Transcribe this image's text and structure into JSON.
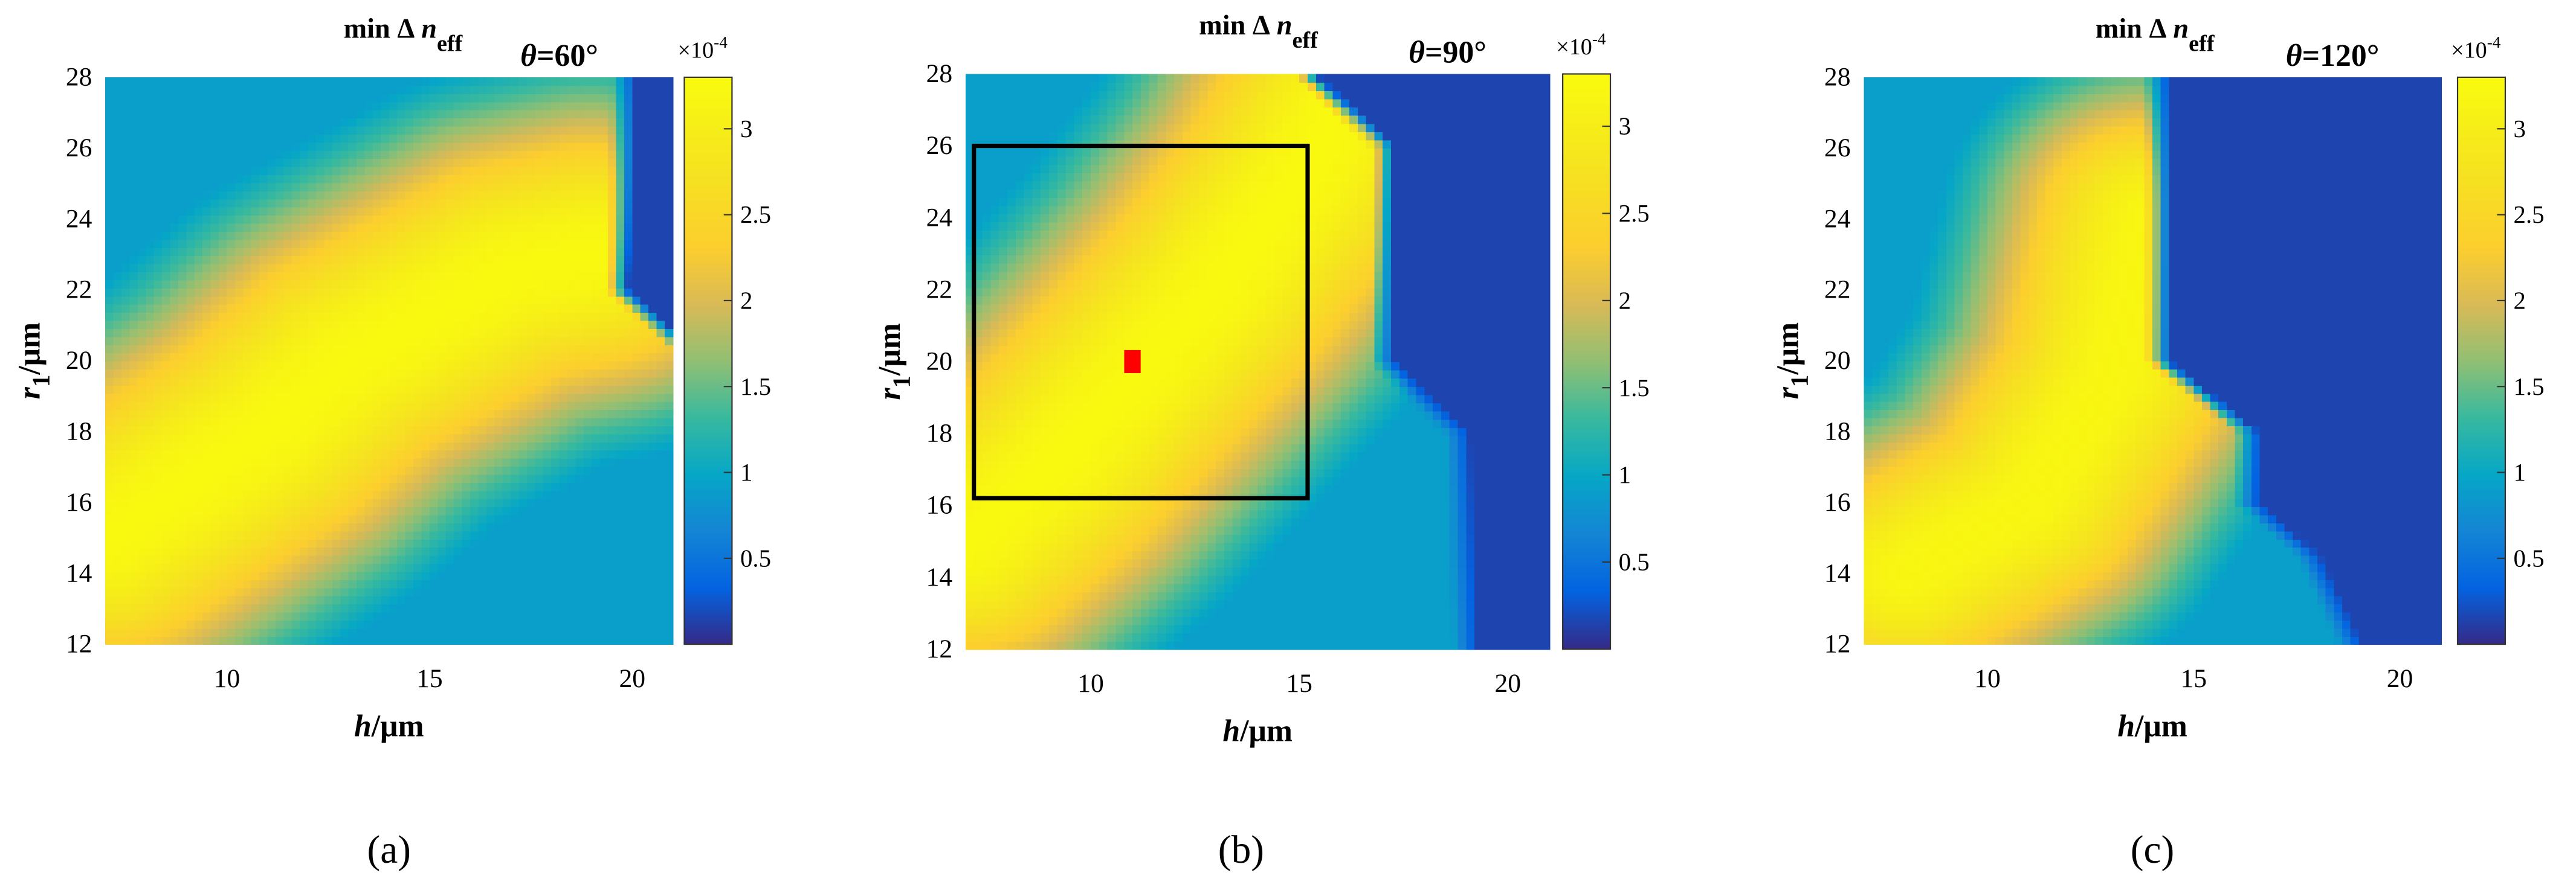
{
  "chart_data": [
    {
      "type": "heatmap",
      "panel_label": "(a)",
      "title": "min Δn_eff",
      "title_parts": {
        "prefix": "min Δ",
        "var": "n",
        "sub": "eff"
      },
      "theta_label": {
        "var": "θ",
        "text": "=60°"
      },
      "xlabel": {
        "var": "h",
        "unit": "/μm"
      },
      "ylabel": {
        "var": "r",
        "sub": "1",
        "unit": "/μm"
      },
      "xlim": [
        7,
        21
      ],
      "ylim": [
        12,
        28
      ],
      "xticks": [
        10,
        15,
        20
      ],
      "yticks": [
        12,
        14,
        16,
        18,
        20,
        22,
        24,
        26,
        28
      ],
      "colorbar": {
        "min": 0,
        "max": 3.3,
        "ticks": [
          0.5,
          1,
          1.5,
          2,
          2.5,
          3
        ],
        "exponent": "×10",
        "exponent_power": "-4"
      },
      "ridge": [
        [
          7,
          15
        ],
        [
          11,
          18
        ],
        [
          13,
          20
        ],
        [
          17,
          22.5
        ],
        [
          19,
          23
        ]
      ],
      "ridge_peak": 3.25,
      "ridge_width": 5.2,
      "cutoff": [
        [
          19.5,
          28
        ],
        [
          19.3,
          22
        ],
        [
          21,
          20.3
        ]
      ],
      "low_value": 0.15,
      "overlay": null
    },
    {
      "type": "heatmap",
      "panel_label": "(b)",
      "title": "min Δn_eff",
      "title_parts": {
        "prefix": "min Δ",
        "var": "n",
        "sub": "eff"
      },
      "theta_label": {
        "var": "θ",
        "text": "=90°"
      },
      "xlabel": {
        "var": "h",
        "unit": "/μm"
      },
      "ylabel": {
        "var": "r",
        "sub": "1",
        "unit": "/μm"
      },
      "xlim": [
        7,
        21
      ],
      "ylim": [
        12,
        28
      ],
      "xticks": [
        10,
        15,
        20
      ],
      "yticks": [
        12,
        14,
        16,
        18,
        20,
        22,
        24,
        26,
        28
      ],
      "colorbar": {
        "min": 0,
        "max": 3.3,
        "ticks": [
          0.5,
          1,
          1.5,
          2,
          2.5,
          3
        ],
        "exponent": "×10",
        "exponent_power": "-4"
      },
      "ridge": [
        [
          7,
          15
        ],
        [
          9,
          17
        ],
        [
          11,
          19.5
        ],
        [
          13,
          22
        ],
        [
          15,
          25
        ],
        [
          16,
          27
        ]
      ],
      "ridge_peak": 3.25,
      "ridge_width": 5.0,
      "cutoff": [
        [
          14.8,
          28
        ],
        [
          16.7,
          26
        ],
        [
          16.7,
          20
        ],
        [
          18.5,
          18
        ],
        [
          18.7,
          12
        ]
      ],
      "low_value": 0.15,
      "overlay": {
        "box": [
          7.2,
          16.2,
          15.2,
          26
        ],
        "marker": [
          11,
          20
        ]
      }
    },
    {
      "type": "heatmap",
      "panel_label": "(c)",
      "title": "min Δn_eff",
      "title_parts": {
        "prefix": "min Δ",
        "var": "n",
        "sub": "eff"
      },
      "theta_label": {
        "var": "θ",
        "text": "=120°"
      },
      "xlabel": {
        "var": "h",
        "unit": "/μm"
      },
      "ylabel": {
        "var": "r",
        "sub": "1",
        "unit": "/μm"
      },
      "xlim": [
        7,
        21
      ],
      "ylim": [
        12,
        28
      ],
      "xticks": [
        10,
        15,
        20
      ],
      "yticks": [
        12,
        14,
        16,
        18,
        20,
        22,
        24,
        26,
        28
      ],
      "colorbar": {
        "min": 0,
        "max": 3.3,
        "ticks": [
          0.5,
          1,
          1.5,
          2,
          2.5,
          3
        ],
        "exponent": "×10",
        "exponent_power": "-4"
      },
      "ridge": [
        [
          8,
          14
        ],
        [
          11,
          16
        ],
        [
          13,
          19.5
        ],
        [
          14,
          24
        ]
      ],
      "ridge_peak": 3.2,
      "ridge_width": 4.6,
      "cutoff": [
        [
          13.8,
          28
        ],
        [
          13.8,
          20
        ],
        [
          16,
          18
        ],
        [
          16,
          16
        ],
        [
          17.5,
          14.5
        ],
        [
          18.5,
          12
        ]
      ],
      "low_value": 0.15,
      "overlay": null
    }
  ]
}
